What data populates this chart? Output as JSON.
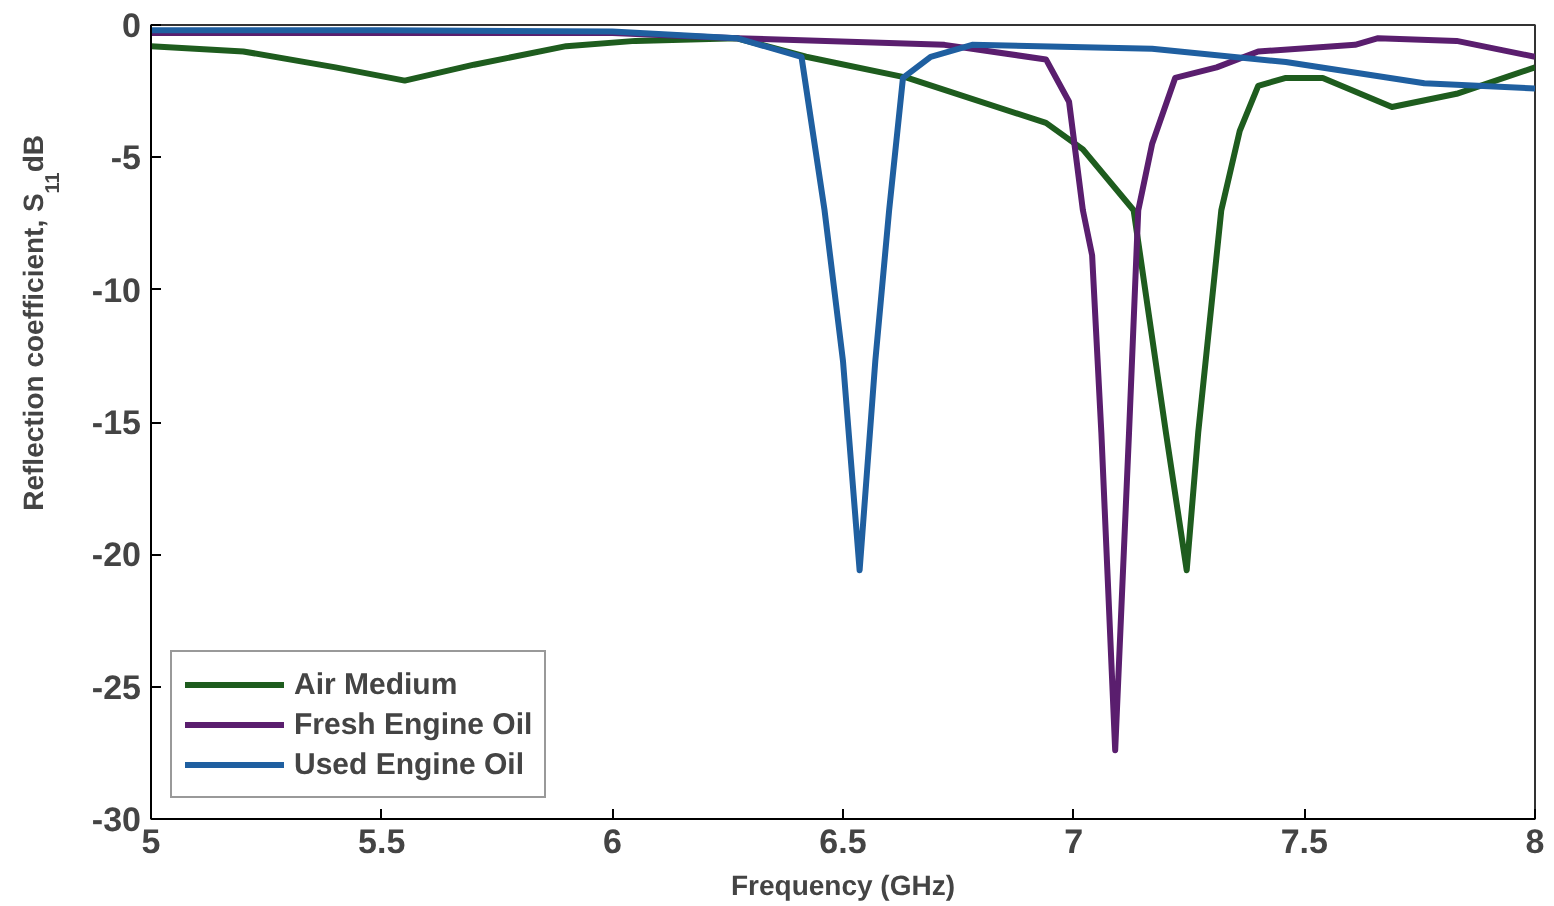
{
  "chart_data": {
    "type": "line",
    "xlabel": "Frequency (GHz)",
    "ylabel": "Reflection coefficient, S$_{11}$ dB",
    "xlim": [
      5,
      8
    ],
    "ylim": [
      -30,
      0
    ],
    "xticks": [
      5,
      5.5,
      6,
      6.5,
      7,
      7.5,
      8
    ],
    "yticks": [
      -30,
      -25,
      -20,
      -15,
      -10,
      -5,
      0
    ],
    "grid": false,
    "legend": "bottom left",
    "marker": "none",
    "line_style": "solid",
    "series": [
      {
        "name": "Air Medium",
        "color": "#1e5c1e",
        "x": [
          5,
          5.2,
          5.4,
          5.55,
          5.7,
          5.9,
          6.05,
          6.27,
          6.42,
          6.64,
          6.94,
          7.02,
          7.13,
          7.2,
          7.245,
          7.27,
          7.32,
          7.36,
          7.4,
          7.46,
          7.54,
          7.69,
          7.83,
          8
        ],
        "values": [
          -0.8,
          -1.0,
          -1.6,
          -2.1,
          -1.5,
          -0.8,
          -0.6,
          -0.5,
          -1.2,
          -2.0,
          -3.7,
          -4.7,
          -7.0,
          -15.4,
          -20.6,
          -15.4,
          -7.0,
          -4.0,
          -2.3,
          -2.0,
          -2.0,
          -3.1,
          -2.6,
          -1.6
        ]
      },
      {
        "name": "Fresh Engine Oil",
        "color": "#5a1e6e",
        "x": [
          5,
          5.5,
          6,
          6.27,
          6.72,
          6.94,
          6.99,
          7.02,
          7.04,
          7.06,
          7.09,
          7.12,
          7.14,
          7.17,
          7.22,
          7.31,
          7.4,
          7.61,
          7.66,
          7.83,
          8
        ],
        "values": [
          -0.3,
          -0.3,
          -0.3,
          -0.5,
          -0.75,
          -1.3,
          -2.9,
          -7.0,
          -8.7,
          -15.4,
          -27.4,
          -15.4,
          -7.0,
          -4.5,
          -2.0,
          -1.6,
          -1.0,
          -0.75,
          -0.5,
          -0.6,
          -1.2
        ]
      },
      {
        "name": "Used Engine Oil",
        "color": "#1f5fa0",
        "x": [
          5,
          5.5,
          6,
          6.27,
          6.41,
          6.46,
          6.5,
          6.536,
          6.57,
          6.6,
          6.63,
          6.69,
          6.78,
          7.17,
          7.46,
          7.76,
          8
        ],
        "values": [
          -0.2,
          -0.2,
          -0.25,
          -0.5,
          -1.2,
          -7.0,
          -12.7,
          -20.6,
          -12.7,
          -7.0,
          -2.0,
          -1.2,
          -0.75,
          -0.9,
          -1.4,
          -2.2,
          -2.4
        ]
      }
    ]
  }
}
